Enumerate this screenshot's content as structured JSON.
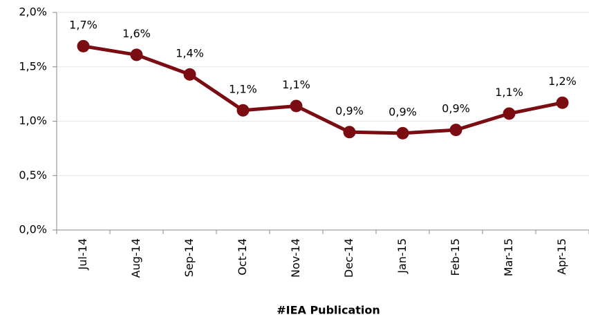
{
  "chart_data": {
    "type": "line",
    "xlabel": "#IEA Publication",
    "categories": [
      "Jul-14",
      "Aug-14",
      "Sep-14",
      "Oct-14",
      "Nov-14",
      "Dec-14",
      "Jan-15",
      "Feb-15",
      "Mar-15",
      "Apr-15"
    ],
    "series": [
      {
        "color": "#7b0d12",
        "values": [
          1.69,
          1.61,
          1.43,
          1.1,
          1.14,
          0.9,
          0.89,
          0.92,
          1.07,
          1.17
        ],
        "value_labels": [
          "1,7%",
          "1,6%",
          "1,4%",
          "1,1%",
          "1,1%",
          "0,9%",
          "0,9%",
          "0,9%",
          "1,1%",
          "1,2%"
        ]
      }
    ],
    "ylim": [
      0,
      2.0
    ],
    "yticks": [
      {
        "value": 0,
        "label": "0,0%"
      },
      {
        "value": 0.5,
        "label": "0,5%"
      },
      {
        "value": 1.0,
        "label": "1,0%"
      },
      {
        "value": 1.5,
        "label": "1,5%"
      },
      {
        "value": 2.0,
        "label": "2,0%"
      }
    ],
    "grid": true
  }
}
